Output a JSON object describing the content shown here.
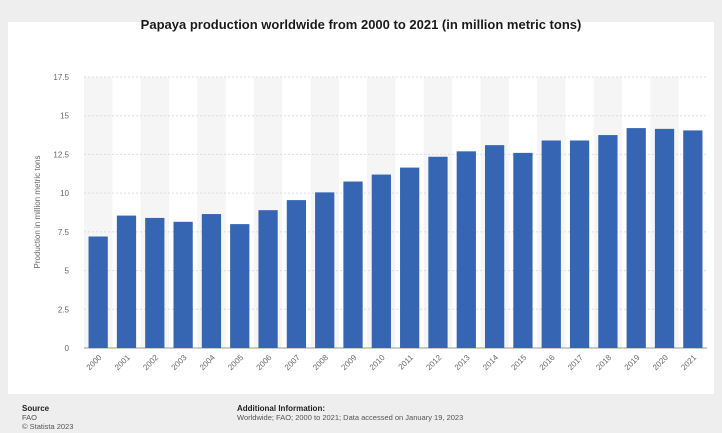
{
  "chart_data": {
    "type": "bar",
    "title": "Papaya production worldwide from 2000 to 2021 (in million metric tons)",
    "xlabel": "",
    "ylabel": "Production in million metric tons",
    "ylim": [
      0,
      17.5
    ],
    "yticks": [
      "0",
      "2.5",
      "5",
      "7.5",
      "10",
      "12.5",
      "15",
      "17.5"
    ],
    "categories": [
      "2000",
      "2001",
      "2002",
      "2003",
      "2004",
      "2005",
      "2006",
      "2007",
      "2008",
      "2009",
      "2010",
      "2011",
      "2012",
      "2013",
      "2014",
      "2015",
      "2016",
      "2017",
      "2018",
      "2019",
      "2020",
      "2021"
    ],
    "values": [
      7.2,
      8.55,
      8.4,
      8.15,
      8.65,
      8.0,
      8.9,
      9.55,
      10.05,
      10.75,
      11.2,
      11.65,
      12.35,
      12.7,
      13.1,
      12.6,
      13.4,
      13.4,
      13.75,
      14.2,
      14.15,
      14.05
    ],
    "bar_color": "#3665b3",
    "alt_band_color": "#f5f5f5",
    "grid": true
  },
  "footer": {
    "source_heading": "Source",
    "source_name": "FAO",
    "copyright": "© Statista 2023",
    "info_heading": "Additional Information:",
    "info_text": "Worldwide; FAO; 2000 to 2021; Data accessed on January 19, 2023"
  }
}
